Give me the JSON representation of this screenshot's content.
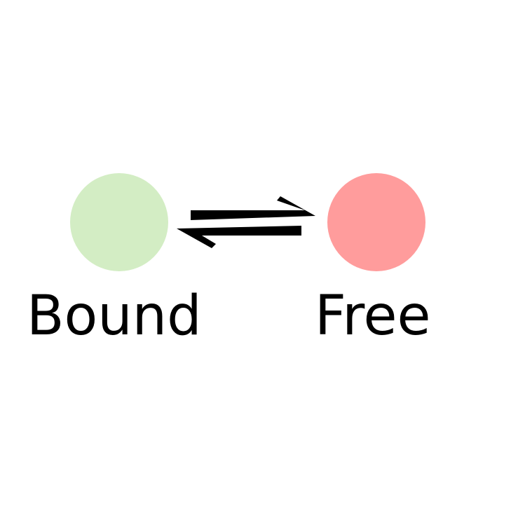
{
  "states": {
    "bound": {
      "label": "Bound",
      "color": "#d3edc4"
    },
    "free": {
      "label": "Free",
      "color": "#ff9c9c"
    }
  },
  "arrow": {
    "icon": "equilibrium-arrows-icon",
    "color": "#000000"
  }
}
